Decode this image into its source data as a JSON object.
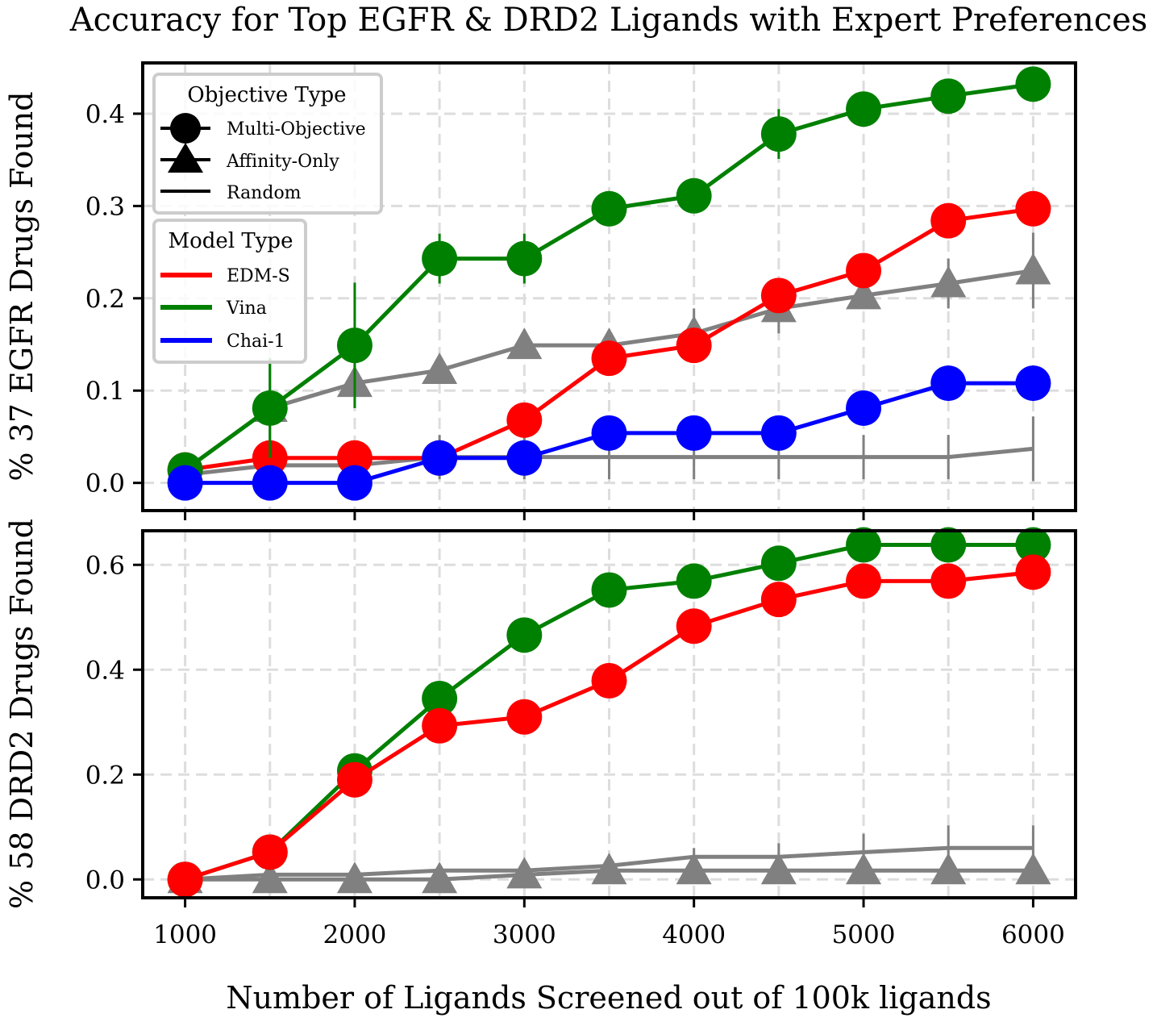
{
  "title": "Accuracy for Top EGFR & DRD2 Ligands with Expert Preferences",
  "xlabel": "Number of Ligands Screened out of 100k ligands",
  "legend": {
    "objective_title": "Objective Type",
    "objective_items": [
      {
        "label": "Multi-Objective",
        "marker": "circle"
      },
      {
        "label": "Affinity-Only",
        "marker": "triangle"
      },
      {
        "label": "Random",
        "marker": "line"
      }
    ],
    "model_title": "Model Type",
    "model_items": [
      {
        "label": "EDM-S",
        "color": "#ff0000"
      },
      {
        "label": "Vina",
        "color": "#008000"
      },
      {
        "label": "Chai-1",
        "color": "#0000ff"
      }
    ]
  },
  "chart_data": [
    {
      "type": "line",
      "panel": "top",
      "ylabel": "% 37 EGFR Drugs Found",
      "x": [
        1000,
        1500,
        2000,
        2500,
        3000,
        3500,
        4000,
        4500,
        5000,
        5500,
        6000
      ],
      "xlim": [
        750,
        6250
      ],
      "ylim": [
        -0.03,
        0.455
      ],
      "yticks": [
        0.0,
        0.1,
        0.2,
        0.3,
        0.4
      ],
      "ytick_labels": [
        "0.0",
        "0.1",
        "0.2",
        "0.3",
        "0.4"
      ],
      "grid": true,
      "series": [
        {
          "name": "Affinity-Only",
          "color": "#808080",
          "marker": "triangle",
          "values": [
            0.014,
            0.081,
            0.108,
            0.122,
            0.149,
            0.149,
            0.162,
            0.189,
            0.203,
            0.216,
            0.23
          ],
          "err": [
            0.0,
            0.054,
            0.027,
            0.0,
            0.0,
            0.0,
            0.027,
            0.027,
            0.0,
            0.027,
            0.041
          ]
        },
        {
          "name": "Random",
          "color": "#808080",
          "marker": "none",
          "values": [
            0.009,
            0.019,
            0.019,
            0.028,
            0.028,
            0.028,
            0.028,
            0.028,
            0.028,
            0.028,
            0.037
          ],
          "err": [
            0.014,
            0.014,
            0.014,
            0.024,
            0.024,
            0.024,
            0.024,
            0.024,
            0.024,
            0.024,
            0.035
          ]
        },
        {
          "name": "EDM-S",
          "color": "#ff0000",
          "marker": "circle",
          "values": [
            0.014,
            0.027,
            0.027,
            0.027,
            0.068,
            0.135,
            0.149,
            0.203,
            0.23,
            0.284,
            0.297
          ],
          "err": [
            0,
            0,
            0,
            0,
            0,
            0,
            0,
            0,
            0,
            0,
            0
          ]
        },
        {
          "name": "Vina",
          "color": "#008000",
          "marker": "circle",
          "values": [
            0.014,
            0.081,
            0.149,
            0.243,
            0.243,
            0.297,
            0.311,
            0.378,
            0.405,
            0.419,
            0.432
          ],
          "err": [
            0.0,
            0.054,
            0.068,
            0.027,
            0.027,
            0.0,
            0.0,
            0.027,
            0.0,
            0.0,
            0.0
          ]
        },
        {
          "name": "Chai-1",
          "color": "#0000ff",
          "marker": "circle",
          "values": [
            0.0,
            0.0,
            0.0,
            0.027,
            0.027,
            0.054,
            0.054,
            0.054,
            0.081,
            0.108,
            0.108
          ],
          "err": [
            0,
            0,
            0,
            0,
            0,
            0,
            0,
            0,
            0,
            0,
            0
          ]
        }
      ]
    },
    {
      "type": "line",
      "panel": "bottom",
      "ylabel": "% 58 DRD2 Drugs Found",
      "x": [
        1000,
        1500,
        2000,
        2500,
        3000,
        3500,
        4000,
        4500,
        5000,
        5500,
        6000
      ],
      "xlim": [
        750,
        6250
      ],
      "xticks": [
        1000,
        2000,
        3000,
        4000,
        5000,
        6000
      ],
      "xtick_labels": [
        "1000",
        "2000",
        "3000",
        "4000",
        "5000",
        "6000"
      ],
      "ylim": [
        -0.035,
        0.665
      ],
      "yticks": [
        0.0,
        0.2,
        0.4,
        0.6
      ],
      "ytick_labels": [
        "0.0",
        "0.2",
        "0.4",
        "0.6"
      ],
      "grid": true,
      "series": [
        {
          "name": "Affinity-Only",
          "color": "#808080",
          "marker": "triangle",
          "values": [
            0.0,
            0.0,
            0.0,
            0.0,
            0.009,
            0.017,
            0.017,
            0.017,
            0.017,
            0.017,
            0.017
          ],
          "err": [
            0,
            0,
            0,
            0,
            0,
            0,
            0,
            0,
            0,
            0,
            0
          ]
        },
        {
          "name": "Random",
          "color": "#808080",
          "marker": "none",
          "values": [
            0.0,
            0.009,
            0.009,
            0.017,
            0.017,
            0.026,
            0.043,
            0.043,
            0.052,
            0.06,
            0.06
          ],
          "err": [
            0.0,
            0.0,
            0.0,
            0.0,
            0.0,
            0.0,
            0.017,
            0.026,
            0.035,
            0.043,
            0.043
          ]
        },
        {
          "name": "Vina",
          "color": "#008000",
          "marker": "circle",
          "values": [
            0.0,
            0.052,
            0.207,
            0.345,
            0.466,
            0.552,
            0.569,
            0.603,
            0.638,
            0.638,
            0.638
          ],
          "err": [
            0,
            0,
            0,
            0,
            0,
            0,
            0,
            0,
            0,
            0,
            0
          ]
        },
        {
          "name": "EDM-S",
          "color": "#ff0000",
          "marker": "circle",
          "values": [
            0.0,
            0.052,
            0.19,
            0.293,
            0.31,
            0.379,
            0.483,
            0.534,
            0.569,
            0.569,
            0.586
          ],
          "err": [
            0,
            0,
            0,
            0,
            0,
            0,
            0,
            0,
            0,
            0,
            0
          ]
        }
      ]
    }
  ]
}
